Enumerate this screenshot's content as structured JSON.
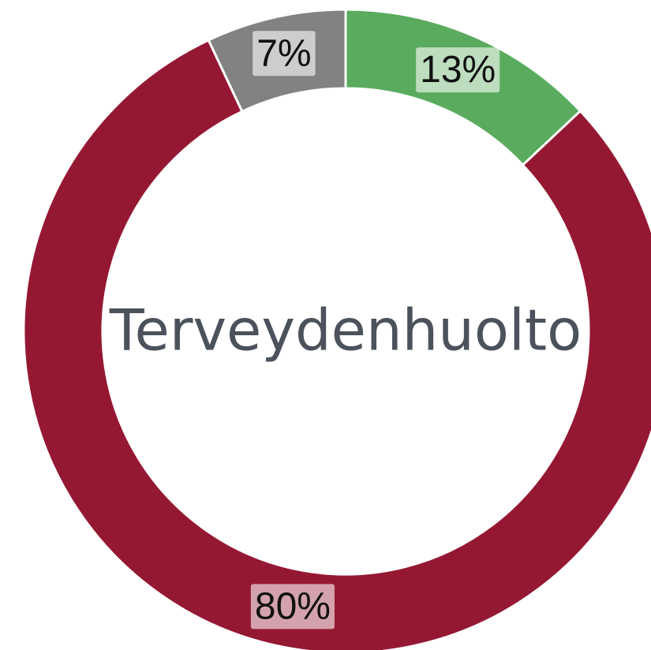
{
  "chart_data": {
    "type": "donut",
    "center_text": "Terveydenhuolto",
    "values": [
      13,
      80,
      7
    ],
    "value_labels": [
      "13%",
      "80%",
      "7%"
    ],
    "colors": [
      "#5aab5e",
      "#951832",
      "#828282"
    ]
  }
}
